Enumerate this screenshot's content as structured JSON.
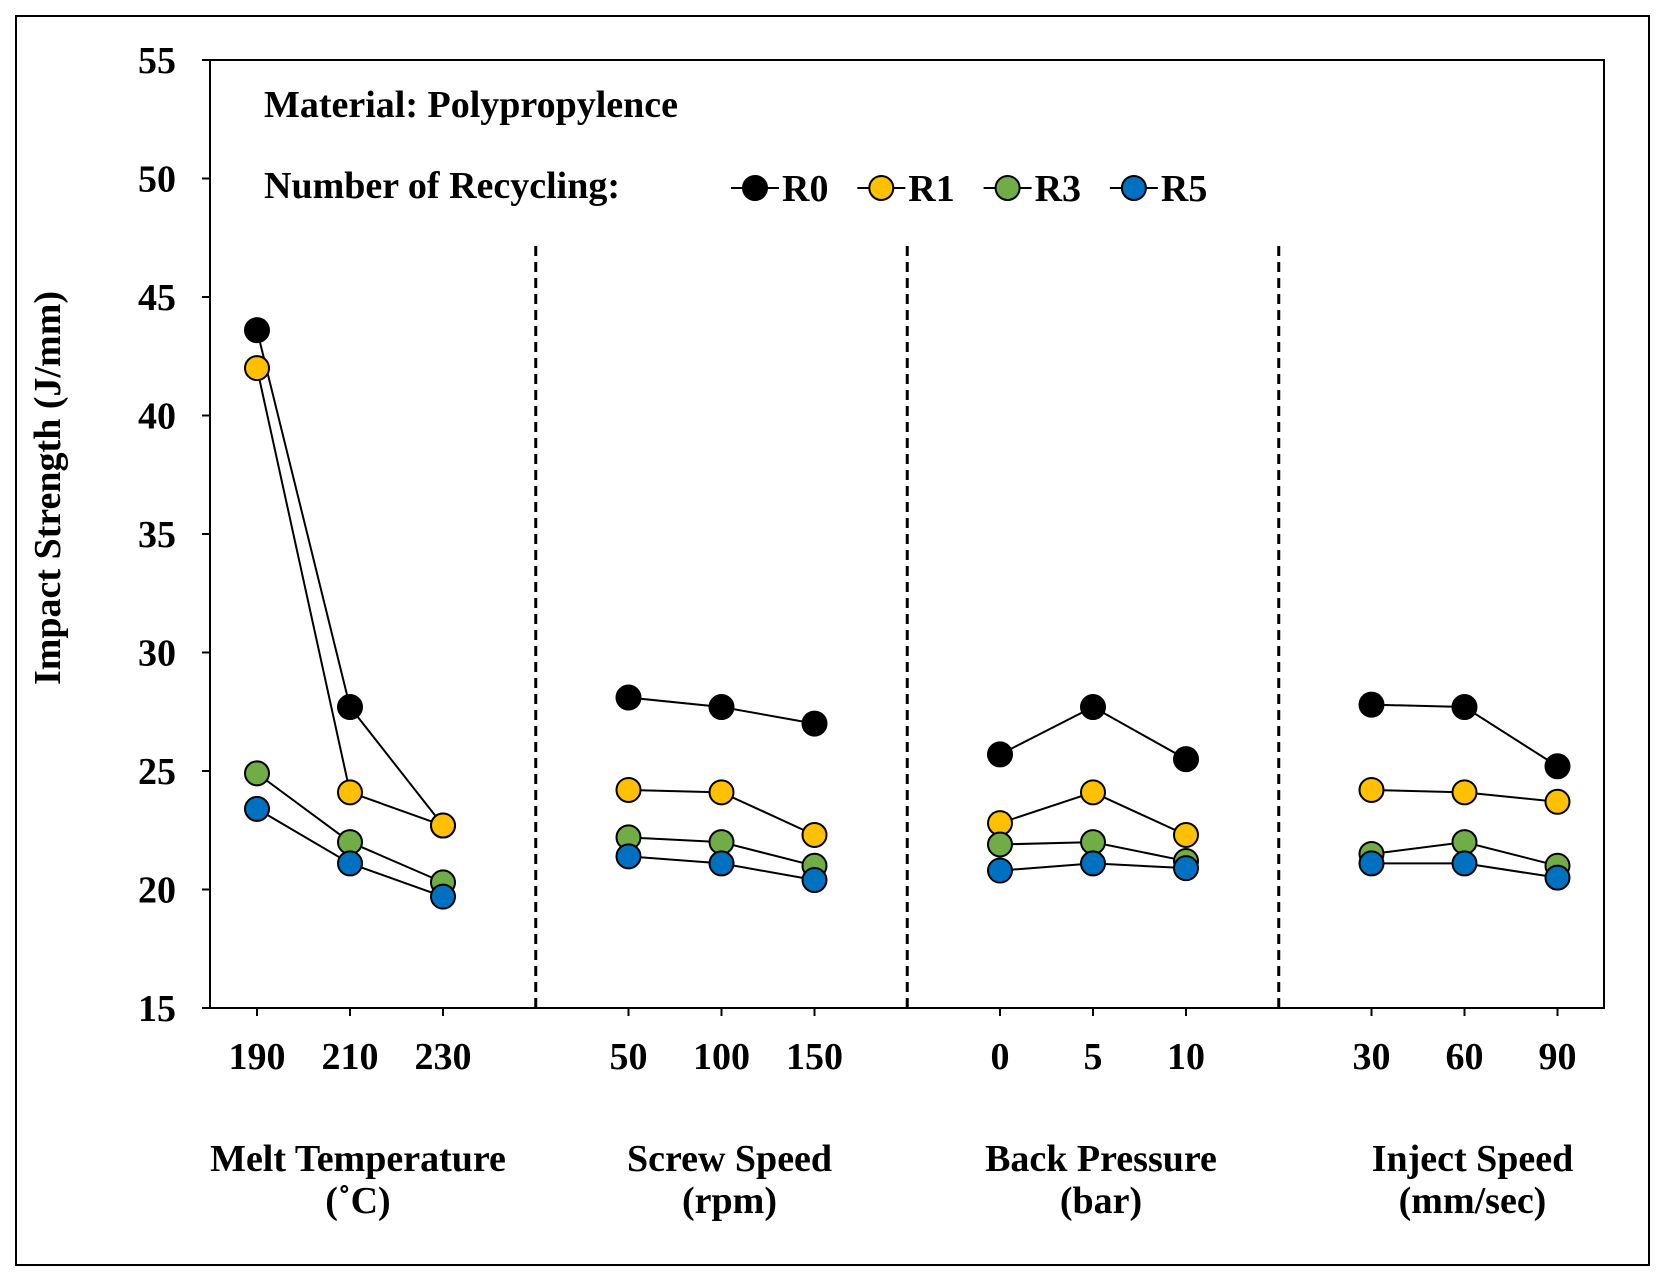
{
  "chart_data": {
    "type": "line",
    "title": "",
    "annotation": "Material: Polypropylence",
    "legend_title": "Number of Recycling:",
    "legend_position": "top",
    "ylabel": "Impact Strength (J/mm)",
    "xlabel": "",
    "ylim": [
      15,
      55
    ],
    "yticks": [
      15,
      20,
      25,
      30,
      35,
      40,
      45,
      50,
      55
    ],
    "grid": false,
    "groups": [
      {
        "name": "Melt Temperature",
        "unit": "(˚C)",
        "categories": [
          "190",
          "210",
          "230"
        ]
      },
      {
        "name": "Screw Speed",
        "unit": "(rpm)",
        "categories": [
          "50",
          "100",
          "150"
        ]
      },
      {
        "name": "Back Pressure",
        "unit": "(bar)",
        "categories": [
          "0",
          "5",
          "10"
        ]
      },
      {
        "name": "Inject Speed",
        "unit": "(mm/sec)",
        "categories": [
          "30",
          "60",
          "90"
        ]
      }
    ],
    "series": [
      {
        "name": "R0",
        "color": "#000000",
        "values": [
          [
            43.6,
            27.7,
            22.7
          ],
          [
            28.1,
            27.7,
            27.0
          ],
          [
            25.7,
            27.7,
            25.5
          ],
          [
            27.8,
            27.7,
            25.2
          ]
        ]
      },
      {
        "name": "R1",
        "color": "#FFC000",
        "values": [
          [
            42.0,
            24.1,
            22.7
          ],
          [
            24.2,
            24.1,
            22.3
          ],
          [
            22.8,
            24.1,
            22.3
          ],
          [
            24.2,
            24.1,
            23.7
          ]
        ]
      },
      {
        "name": "R3",
        "color": "#70AD47",
        "values": [
          [
            24.9,
            22.0,
            20.3
          ],
          [
            22.2,
            22.0,
            21.0
          ],
          [
            21.9,
            22.0,
            21.2
          ],
          [
            21.5,
            22.0,
            21.0
          ]
        ]
      },
      {
        "name": "R5",
        "color": "#0070C0",
        "values": [
          [
            23.4,
            21.1,
            19.7
          ],
          [
            21.4,
            21.1,
            20.4
          ],
          [
            20.8,
            21.1,
            20.9
          ],
          [
            21.1,
            21.1,
            20.5
          ]
        ]
      }
    ]
  }
}
